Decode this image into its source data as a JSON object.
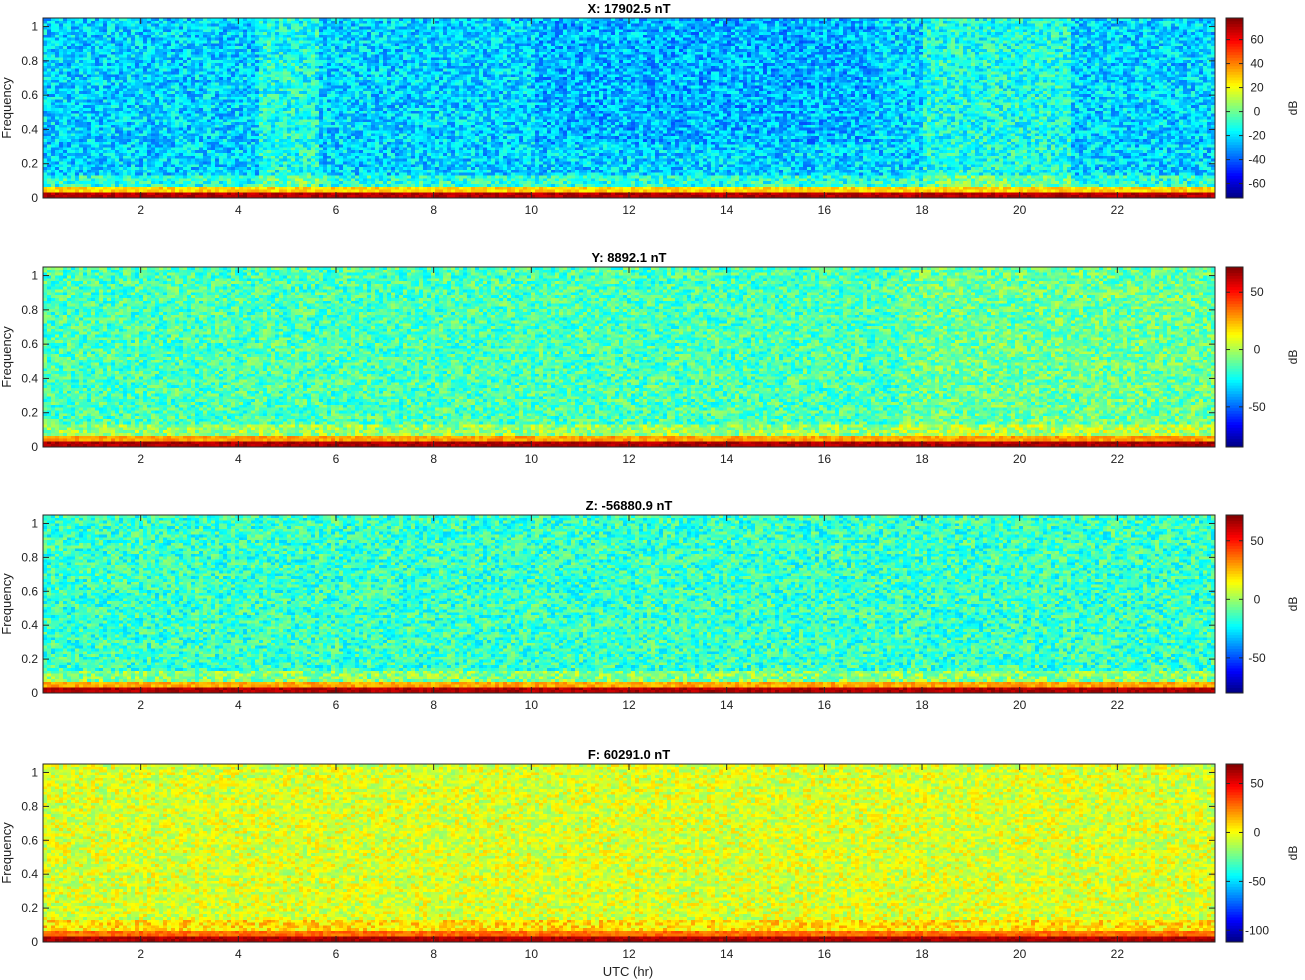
{
  "figure": {
    "xlabel": "UTC (hr)"
  },
  "chart_data": [
    {
      "type": "heatmap",
      "title": "X: 17902.5 nT",
      "ylabel": "Frequency",
      "xlim": [
        0,
        24
      ],
      "ylim": [
        0,
        1.05
      ],
      "xticks": [
        2,
        4,
        6,
        8,
        10,
        12,
        14,
        16,
        18,
        20,
        22
      ],
      "yticks": [
        0,
        0.2,
        0.4,
        0.6,
        0.8,
        1
      ],
      "colorbar": {
        "label": "dB",
        "min": -72,
        "max": 78,
        "ticks": [
          -60,
          -40,
          -20,
          0,
          20,
          40,
          60
        ]
      },
      "colormap": "jet",
      "background_level_db": -22,
      "near_zero_frequency_level_db": 70
    },
    {
      "type": "heatmap",
      "title": "Y: 8892.1 nT",
      "ylabel": "Frequency",
      "xlim": [
        0,
        24
      ],
      "ylim": [
        0,
        1.05
      ],
      "xticks": [
        2,
        4,
        6,
        8,
        10,
        12,
        14,
        16,
        18,
        20,
        22
      ],
      "yticks": [
        0,
        0.2,
        0.4,
        0.6,
        0.8,
        1
      ],
      "colorbar": {
        "label": "dB",
        "min": -85,
        "max": 72,
        "ticks": [
          -50,
          0,
          50
        ]
      },
      "colormap": "jet",
      "background_level_db": -15,
      "near_zero_frequency_level_db": 65
    },
    {
      "type": "heatmap",
      "title": "Z: -56880.9 nT",
      "ylabel": "Frequency",
      "xlim": [
        0,
        24
      ],
      "ylim": [
        0,
        1.05
      ],
      "xticks": [
        2,
        4,
        6,
        8,
        10,
        12,
        14,
        16,
        18,
        20,
        22
      ],
      "yticks": [
        0,
        0.2,
        0.4,
        0.6,
        0.8,
        1
      ],
      "colorbar": {
        "label": "dB",
        "min": -80,
        "max": 72,
        "ticks": [
          -50,
          0,
          50
        ]
      },
      "colormap": "jet",
      "background_level_db": -15,
      "near_zero_frequency_level_db": 65
    },
    {
      "type": "heatmap",
      "title": "F: 60291.0 nT",
      "ylabel": "Frequency",
      "xlim": [
        0,
        24
      ],
      "ylim": [
        0,
        1.05
      ],
      "xticks": [
        2,
        4,
        6,
        8,
        10,
        12,
        14,
        16,
        18,
        20,
        22
      ],
      "yticks": [
        0,
        0.2,
        0.4,
        0.6,
        0.8,
        1
      ],
      "colorbar": {
        "label": "dB",
        "min": -112,
        "max": 70,
        "ticks": [
          -100,
          -50,
          0,
          50
        ]
      },
      "colormap": "jet",
      "background_level_db": -5,
      "near_zero_frequency_level_db": 62
    }
  ]
}
